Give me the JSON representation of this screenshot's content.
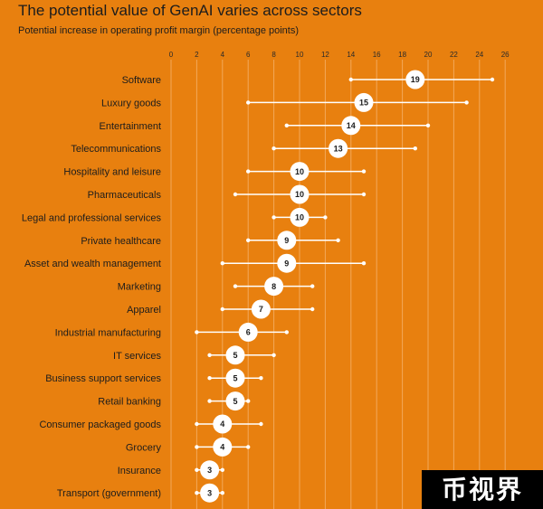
{
  "title": "The potential value of GenAI varies across sectors",
  "subtitle": "Potential increase in operating profit margin (percentage points)",
  "watermark": "币视界",
  "colors": {
    "background": "#E8800F",
    "range_line": "#FFFFFF",
    "dot": "#FFFFFF",
    "text": "#1c1c1c"
  },
  "chart_data": {
    "type": "scatter",
    "title": "The potential value of GenAI varies across sectors",
    "subtitle": "Potential increase in operating profit margin (percentage points)",
    "x_ticks": [
      0,
      2,
      4,
      6,
      8,
      10,
      12,
      14,
      16,
      18,
      20,
      22,
      24,
      26
    ],
    "xlim": [
      0,
      26
    ],
    "grid": "vertical",
    "series": [
      {
        "type": "range-dot",
        "rows": [
          {
            "category": "Software",
            "low": 14,
            "high": 25,
            "value": 19
          },
          {
            "category": "Luxury goods",
            "low": 6,
            "high": 23,
            "value": 15
          },
          {
            "category": "Entertainment",
            "low": 9,
            "high": 20,
            "value": 14
          },
          {
            "category": "Telecommunications",
            "low": 8,
            "high": 19,
            "value": 13
          },
          {
            "category": "Hospitality and leisure",
            "low": 6,
            "high": 15,
            "value": 10
          },
          {
            "category": "Pharmaceuticals",
            "low": 5,
            "high": 15,
            "value": 10
          },
          {
            "category": "Legal and professional services",
            "low": 8,
            "high": 12,
            "value": 10
          },
          {
            "category": "Private healthcare",
            "low": 6,
            "high": 13,
            "value": 9
          },
          {
            "category": "Asset and wealth management",
            "low": 4,
            "high": 15,
            "value": 9
          },
          {
            "category": "Marketing",
            "low": 5,
            "high": 11,
            "value": 8
          },
          {
            "category": "Apparel",
            "low": 4,
            "high": 11,
            "value": 7
          },
          {
            "category": "Industrial manufacturing",
            "low": 2,
            "high": 9,
            "value": 6
          },
          {
            "category": "IT services",
            "low": 3,
            "high": 8,
            "value": 5
          },
          {
            "category": "Business support services",
            "low": 3,
            "high": 7,
            "value": 5
          },
          {
            "category": "Retail banking",
            "low": 3,
            "high": 6,
            "value": 5
          },
          {
            "category": "Consumer packaged goods",
            "low": 2,
            "high": 7,
            "value": 4
          },
          {
            "category": "Grocery",
            "low": 2,
            "high": 6,
            "value": 4
          },
          {
            "category": "Insurance",
            "low": 2,
            "high": 4,
            "value": 3
          },
          {
            "category": "Transport (government)",
            "low": 2,
            "high": 4,
            "value": 3
          }
        ]
      }
    ]
  }
}
